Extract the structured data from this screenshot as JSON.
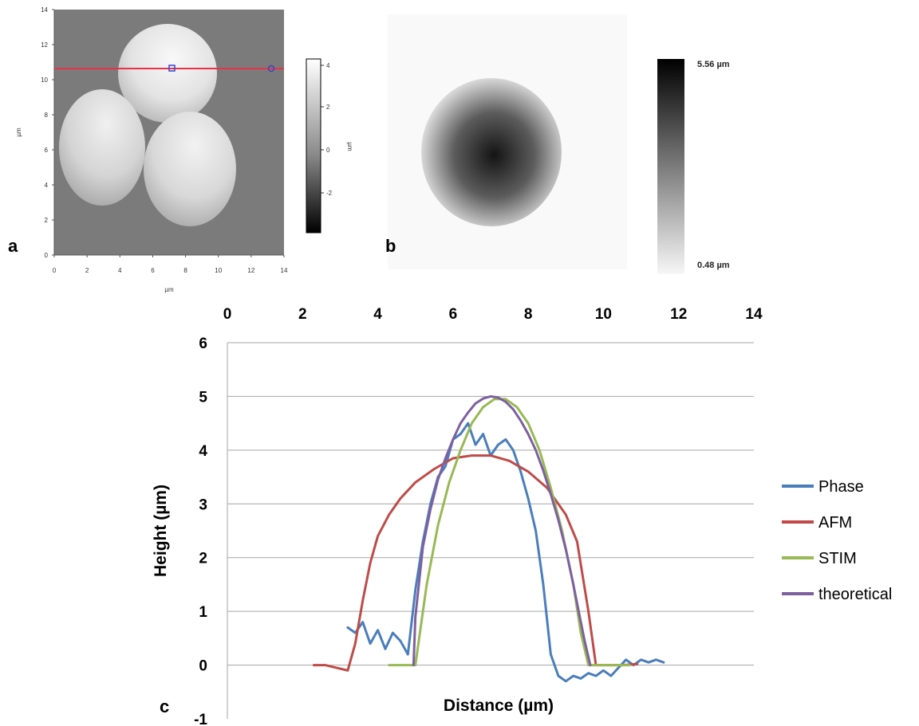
{
  "panel_labels": {
    "a": "a",
    "b": "b",
    "c": "c"
  },
  "panel_a": {
    "x_ticks": [
      "0",
      "2",
      "4",
      "6",
      "8",
      "10",
      "12",
      "14"
    ],
    "y_ticks": [
      "0",
      "2",
      "4",
      "6",
      "8",
      "10",
      "12",
      "14"
    ],
    "x_unit": "µm",
    "y_unit": "µm",
    "colorbar_ticks": [
      "4",
      "2",
      "0",
      "-2"
    ],
    "colorbar_unit": "µm"
  },
  "panel_b": {
    "colorbar_max": "5.56 µm",
    "colorbar_min": "0.48 µm"
  },
  "colors": {
    "phase": "#4a7ebb",
    "afm": "#be4b48",
    "stim": "#98b954",
    "theoretical": "#7d60a0",
    "scanline": "#e8324a",
    "gridline": "#a6a6a6"
  },
  "chart_data": {
    "type": "line",
    "xlabel": "Distance (µm)",
    "ylabel": "Height (µm)",
    "xlim": [
      0,
      14
    ],
    "ylim": [
      -1,
      6
    ],
    "x_ticks": [
      "0",
      "2",
      "4",
      "6",
      "8",
      "10",
      "12",
      "14"
    ],
    "y_ticks": [
      "-1",
      "0",
      "1",
      "2",
      "3",
      "4",
      "5",
      "6"
    ],
    "grid": "horizontal",
    "legend_position": "right",
    "series": [
      {
        "name": "Phase",
        "color": "#4a7ebb",
        "x": [
          3.2,
          3.4,
          3.6,
          3.8,
          4.0,
          4.2,
          4.4,
          4.6,
          4.8,
          5.0,
          5.2,
          5.4,
          5.6,
          5.8,
          6.0,
          6.2,
          6.4,
          6.6,
          6.8,
          7.0,
          7.2,
          7.4,
          7.6,
          7.8,
          8.0,
          8.2,
          8.4,
          8.6,
          8.8,
          9.0,
          9.2,
          9.4,
          9.6,
          9.8,
          10.0,
          10.2,
          10.4,
          10.6,
          10.8,
          11.0,
          11.2,
          11.4,
          11.6
        ],
        "y": [
          0.7,
          0.6,
          0.8,
          0.4,
          0.65,
          0.3,
          0.6,
          0.45,
          0.2,
          1.4,
          2.3,
          3.0,
          3.5,
          3.7,
          4.2,
          4.3,
          4.5,
          4.1,
          4.3,
          3.9,
          4.1,
          4.2,
          4.0,
          3.6,
          3.1,
          2.5,
          1.5,
          0.2,
          -0.2,
          -0.3,
          -0.2,
          -0.25,
          -0.15,
          -0.2,
          -0.1,
          -0.2,
          -0.05,
          0.1,
          0.0,
          0.1,
          0.05,
          0.1,
          0.05
        ]
      },
      {
        "name": "AFM",
        "color": "#be4b48",
        "x": [
          2.3,
          2.6,
          2.9,
          3.2,
          3.4,
          3.6,
          3.8,
          4.0,
          4.3,
          4.6,
          5.0,
          5.5,
          6.0,
          6.5,
          7.0,
          7.5,
          8.0,
          8.5,
          9.0,
          9.3,
          9.6,
          9.8,
          10.2,
          10.5,
          10.9
        ],
        "y": [
          0.0,
          0.0,
          -0.05,
          -0.1,
          0.4,
          1.2,
          1.9,
          2.4,
          2.8,
          3.1,
          3.4,
          3.65,
          3.85,
          3.9,
          3.9,
          3.8,
          3.6,
          3.3,
          2.8,
          2.3,
          1.0,
          0.0,
          0.0,
          0.0,
          0.02
        ]
      },
      {
        "name": "STIM",
        "color": "#98b954",
        "x": [
          4.3,
          4.6,
          4.9,
          5.0,
          5.3,
          5.6,
          5.9,
          6.2,
          6.5,
          6.8,
          7.1,
          7.4,
          7.7,
          8.0,
          8.3,
          8.6,
          8.9,
          9.2,
          9.4,
          9.6,
          9.8,
          10.1,
          10.4,
          10.7
        ],
        "y": [
          0.0,
          0.0,
          0.0,
          0.0,
          1.5,
          2.6,
          3.4,
          4.0,
          4.5,
          4.8,
          4.95,
          4.95,
          4.8,
          4.5,
          4.0,
          3.3,
          2.5,
          1.5,
          0.6,
          0.0,
          0.0,
          0.0,
          0.0,
          0.0
        ]
      },
      {
        "name": "theoretical",
        "color": "#7d60a0",
        "x": [
          4.95,
          5.0,
          5.2,
          5.4,
          5.6,
          5.8,
          6.0,
          6.2,
          6.4,
          6.6,
          6.8,
          7.0,
          7.2,
          7.4,
          7.6,
          7.8,
          8.0,
          8.2,
          8.4,
          8.6,
          8.8,
          9.0,
          9.2,
          9.4,
          9.5,
          9.6,
          9.65
        ],
        "y": [
          0.0,
          0.9,
          2.2,
          2.9,
          3.45,
          3.85,
          4.2,
          4.5,
          4.7,
          4.87,
          4.96,
          5.0,
          4.98,
          4.9,
          4.76,
          4.55,
          4.3,
          4.0,
          3.62,
          3.18,
          2.7,
          2.15,
          1.5,
          0.8,
          0.45,
          0.15,
          0.0
        ]
      }
    ]
  }
}
